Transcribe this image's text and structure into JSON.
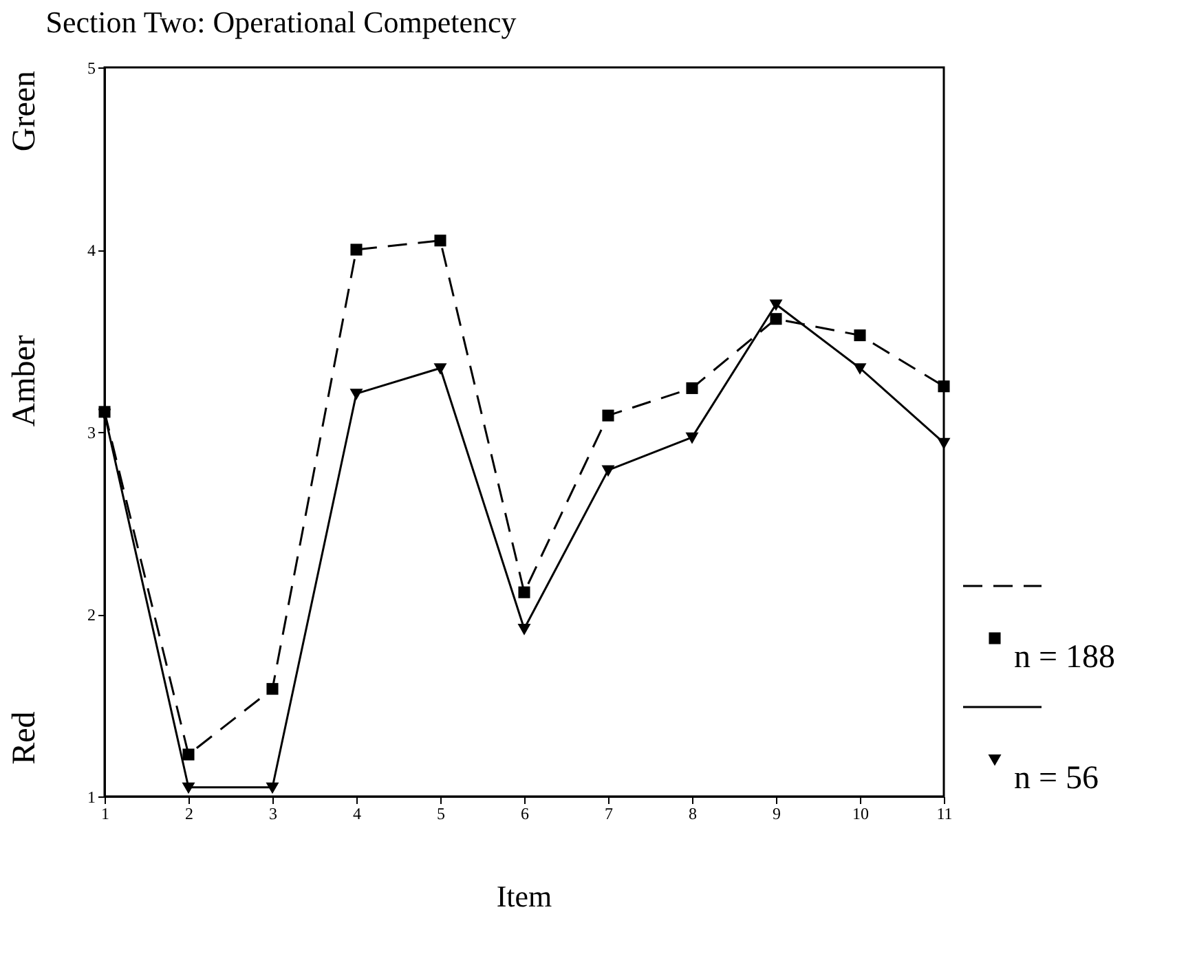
{
  "chart_data": {
    "type": "line",
    "title": "Section Two:  Operational Competency",
    "xlabel": "Item",
    "annotations": [
      "Red",
      "Amber",
      "Green"
    ],
    "x": [
      1,
      2,
      3,
      4,
      5,
      6,
      7,
      8,
      9,
      10,
      11
    ],
    "xlim": [
      1,
      11
    ],
    "xticks": [
      1,
      2,
      3,
      4,
      5,
      6,
      7,
      8,
      9,
      10,
      11
    ],
    "ylim": [
      1,
      5
    ],
    "yticks": [
      1,
      2,
      3,
      4,
      5
    ],
    "grid": false,
    "legend": "right",
    "series": [
      {
        "name": "n = 188",
        "color": "#000000",
        "line_style": "dashed",
        "marker": "square",
        "values": [
          3.11,
          1.23,
          1.59,
          4.0,
          4.05,
          2.12,
          3.09,
          3.24,
          3.62,
          3.53,
          3.25
        ]
      },
      {
        "name": "n = 56",
        "color": "#000000",
        "line_style": "solid",
        "marker": "triangle",
        "values": [
          3.1,
          1.05,
          1.05,
          3.21,
          3.35,
          1.92,
          2.79,
          2.97,
          3.7,
          3.35,
          2.94
        ]
      }
    ]
  }
}
